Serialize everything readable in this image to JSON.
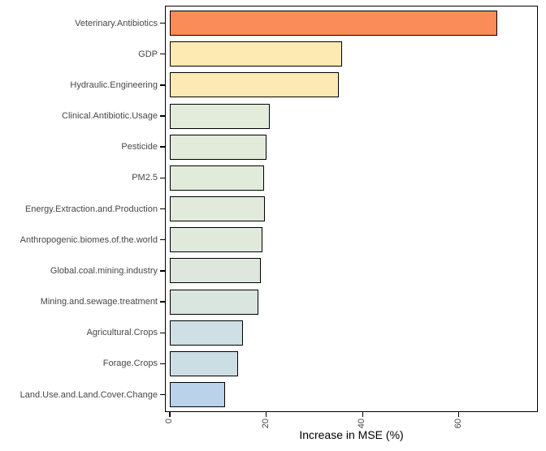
{
  "chart_data": {
    "type": "bar",
    "orientation": "horizontal",
    "title": "",
    "xlabel": "Increase in MSE (%)",
    "ylabel": "",
    "xlim": [
      0,
      76
    ],
    "x_ticks": [
      0,
      20,
      40,
      60
    ],
    "grid": false,
    "legend": "none",
    "categories": [
      "Veterinary.Antibiotics",
      "GDP",
      "Hydraulic.Engineering",
      "Clinical.Antibiotic.Usage",
      "Pesticide",
      "PM2.5",
      "Energy.Extraction.and.Production",
      "Anthropogenic.biomes.of.the.world",
      "Global.coal.mining.industry",
      "Mining.and.sewage.treatment",
      "Agricultural.Crops",
      "Forage.Crops",
      "Land.Use.and.Land.Cover.Change"
    ],
    "values": [
      67.9,
      35.8,
      35.0,
      20.7,
      20.0,
      19.6,
      19.7,
      19.3,
      18.9,
      18.3,
      15.2,
      14.1,
      11.5
    ],
    "bar_colors": [
      "#FA8C5A",
      "#FDE9B2",
      "#FDE9B3",
      "#E3ECDB",
      "#E2EBDA",
      "#E1EBDA",
      "#E1EADB",
      "#DFE9DC",
      "#DDE7DD",
      "#D9E5DF",
      "#CEE0E3",
      "#CBDEE4",
      "#BAD3EA"
    ],
    "bar_border_color": "#000000",
    "panel_border_color": "#000000",
    "tick_label_color": "#474747",
    "axis_title_color": "#000000",
    "background_color": "#ffffff"
  }
}
